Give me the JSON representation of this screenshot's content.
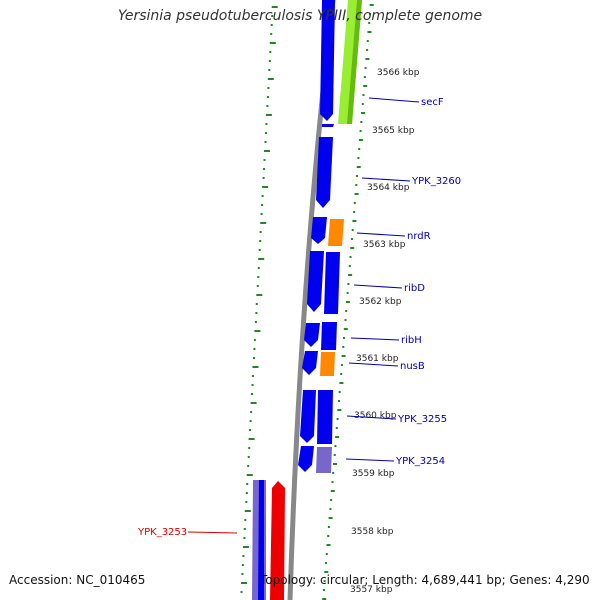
{
  "title": "Yersinia pseudotuberculosis YPIII, complete genome",
  "footer": {
    "accession": "Accession: NC_010465",
    "summary": "Topology: circular; Length: 4,689,441 bp; Genes: 4,290"
  },
  "colors": {
    "forward_gene": "#0000ee",
    "reverse_gene": "#0000ee",
    "rrna_like": "#7766cc",
    "trna_like": "#ff8800",
    "highlight_green": "#99ee33",
    "red_gene": "#ee0000",
    "backbone": "#888888",
    "gc_dots": "#228822",
    "label_blue": "#0000aa",
    "label_red": "#dd0000"
  },
  "kbp_ticks": [
    "3566 kbp",
    "3565 kbp",
    "3564 kbp",
    "3563 kbp",
    "3562 kbp",
    "3561 kbp",
    "3560 kbp",
    "3559 kbp",
    "3558 kbp",
    "3557 kbp"
  ],
  "gene_labels": [
    {
      "name": "secF",
      "color": "blue"
    },
    {
      "name": "YPK_3260",
      "color": "blue"
    },
    {
      "name": "nrdR",
      "color": "blue"
    },
    {
      "name": "ribD",
      "color": "blue"
    },
    {
      "name": "ribH",
      "color": "blue"
    },
    {
      "name": "nusB",
      "color": "blue"
    },
    {
      "name": "YPK_3255",
      "color": "blue"
    },
    {
      "name": "YPK_3254",
      "color": "blue"
    },
    {
      "name": "YPK_3253",
      "color": "red"
    }
  ]
}
